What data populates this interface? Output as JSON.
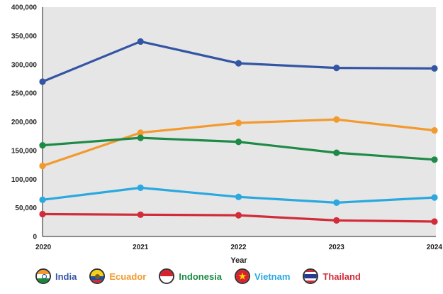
{
  "chart_data": {
    "type": "line",
    "xlabel": "Year",
    "ylabel": "",
    "x": [
      "2020",
      "2021",
      "2022",
      "2023",
      "2024"
    ],
    "ylim": [
      0,
      400000
    ],
    "yticks": [
      0,
      50000,
      100000,
      150000,
      200000,
      250000,
      300000,
      350000,
      400000
    ],
    "ytick_labels": [
      "0",
      "50,000",
      "100,000",
      "150,000",
      "200,000",
      "250,000",
      "300,000",
      "350,000",
      "400,000"
    ],
    "grid": false,
    "legend_position": "bottom",
    "series": [
      {
        "name": "India",
        "color": "#3355a3",
        "icon": "india-flag-icon",
        "values": [
          270000,
          340000,
          302000,
          294000,
          293000
        ]
      },
      {
        "name": "Ecuador",
        "color": "#f39a2e",
        "icon": "ecuador-flag-icon",
        "values": [
          123000,
          181000,
          198000,
          204000,
          185000
        ]
      },
      {
        "name": "Indonesia",
        "color": "#1d8a45",
        "icon": "indonesia-flag-icon",
        "values": [
          159000,
          172000,
          165000,
          146000,
          134000
        ]
      },
      {
        "name": "Vietnam",
        "color": "#2aa8df",
        "icon": "vietnam-flag-icon",
        "values": [
          64000,
          85000,
          69000,
          59000,
          68000
        ]
      },
      {
        "name": "Thailand",
        "color": "#d12c3a",
        "icon": "thailand-flag-icon",
        "values": [
          39000,
          38000,
          37000,
          28000,
          26000
        ]
      }
    ]
  }
}
